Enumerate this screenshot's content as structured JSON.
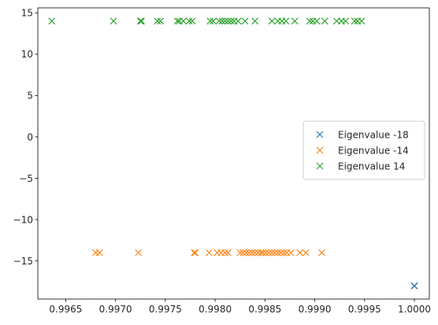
{
  "chart_data": {
    "type": "scatter",
    "title": "",
    "xlabel": "",
    "ylabel": "",
    "xlim": [
      0.99622,
      1.00015
    ],
    "ylim": [
      -19.6,
      15.6
    ],
    "xticks": [
      0.9965,
      0.997,
      0.9975,
      0.998,
      0.9985,
      0.999,
      0.9995,
      1.0
    ],
    "xtick_labels": [
      "0.9965",
      "0.9970",
      "0.9975",
      "0.9980",
      "0.9985",
      "0.9990",
      "0.9995",
      "1.0000"
    ],
    "yticks": [
      -15,
      -10,
      -5,
      0,
      5,
      10,
      15
    ],
    "ytick_labels": [
      "−15",
      "−10",
      "−5",
      "0",
      "5",
      "10",
      "15"
    ],
    "grid": false,
    "marker": "x",
    "legend_position": "center-right",
    "series": [
      {
        "name": "Eigenvalue -18",
        "color": "#1f77b4",
        "points": [
          [
            1.0,
            -18
          ],
          [
            1.0,
            -18
          ],
          [
            1.0,
            -18
          ]
        ]
      },
      {
        "name": "Eigenvalue -14",
        "color": "#ff7f0e",
        "points": [
          [
            0.9968,
            -14
          ],
          [
            0.99684,
            -14
          ],
          [
            0.99723,
            -14
          ],
          [
            0.99779,
            -14
          ],
          [
            0.9978,
            -14
          ],
          [
            0.99794,
            -14
          ],
          [
            0.99802,
            -14
          ],
          [
            0.99806,
            -14
          ],
          [
            0.9981,
            -14
          ],
          [
            0.99813,
            -14
          ],
          [
            0.99825,
            -14
          ],
          [
            0.99828,
            -14
          ],
          [
            0.99831,
            -14
          ],
          [
            0.99834,
            -14
          ],
          [
            0.99837,
            -14
          ],
          [
            0.9984,
            -14
          ],
          [
            0.99843,
            -14
          ],
          [
            0.99846,
            -14
          ],
          [
            0.99848,
            -14
          ],
          [
            0.99851,
            -14
          ],
          [
            0.99854,
            -14
          ],
          [
            0.99857,
            -14
          ],
          [
            0.9986,
            -14
          ],
          [
            0.99863,
            -14
          ],
          [
            0.99866,
            -14
          ],
          [
            0.99869,
            -14
          ],
          [
            0.99872,
            -14
          ],
          [
            0.99876,
            -14
          ],
          [
            0.99885,
            -14
          ],
          [
            0.99891,
            -14
          ],
          [
            0.99907,
            -14
          ]
        ]
      },
      {
        "name": "Eigenvalue 14",
        "color": "#2ca02c",
        "points": [
          [
            0.99636,
            14
          ],
          [
            0.99698,
            14
          ],
          [
            0.99725,
            14
          ],
          [
            0.99726,
            14
          ],
          [
            0.99742,
            14
          ],
          [
            0.99745,
            14
          ],
          [
            0.99762,
            14
          ],
          [
            0.99764,
            14
          ],
          [
            0.99768,
            14
          ],
          [
            0.99774,
            14
          ],
          [
            0.99777,
            14
          ],
          [
            0.99795,
            14
          ],
          [
            0.99798,
            14
          ],
          [
            0.99804,
            14
          ],
          [
            0.99807,
            14
          ],
          [
            0.9981,
            14
          ],
          [
            0.99813,
            14
          ],
          [
            0.99816,
            14
          ],
          [
            0.99819,
            14
          ],
          [
            0.99823,
            14
          ],
          [
            0.9983,
            14
          ],
          [
            0.9984,
            14
          ],
          [
            0.99857,
            14
          ],
          [
            0.99863,
            14
          ],
          [
            0.99867,
            14
          ],
          [
            0.99871,
            14
          ],
          [
            0.9988,
            14
          ],
          [
            0.99895,
            14
          ],
          [
            0.99898,
            14
          ],
          [
            0.99902,
            14
          ],
          [
            0.9991,
            14
          ],
          [
            0.99922,
            14
          ],
          [
            0.99927,
            14
          ],
          [
            0.99931,
            14
          ],
          [
            0.9994,
            14
          ],
          [
            0.99943,
            14
          ],
          [
            0.99947,
            14
          ]
        ]
      }
    ]
  }
}
